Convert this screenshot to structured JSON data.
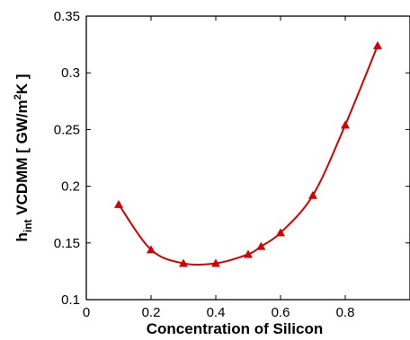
{
  "chart_data": {
    "type": "line",
    "xlabel": "Concentration of Silicon",
    "ylabel": {
      "h": "h",
      "sub": "int",
      "main": " VCDMM [ GW/m",
      "sup": "2",
      "tail": "K ]"
    },
    "xlim": [
      0,
      1
    ],
    "ylim": [
      0.1,
      0.35
    ],
    "x_ticks": [
      0,
      0.2,
      0.4,
      0.6,
      0.8
    ],
    "x_tick_labels": [
      "0",
      "0.2",
      "0.4",
      "0.6",
      "0.8"
    ],
    "y_ticks": [
      0.1,
      0.15,
      0.2,
      0.25,
      0.3,
      0.35
    ],
    "y_tick_labels": [
      "0.1",
      "0.15",
      "0.2",
      "0.25",
      "0.3",
      "0.35"
    ],
    "grid": false,
    "series": [
      {
        "x": [
          0.1,
          0.2,
          0.3,
          0.4,
          0.5,
          0.54,
          0.6,
          0.7,
          0.8,
          0.9
        ],
        "y": [
          0.184,
          0.144,
          0.132,
          0.132,
          0.14,
          0.147,
          0.159,
          0.192,
          0.254,
          0.324
        ],
        "color": "#d40000",
        "marker": "triangle"
      }
    ]
  }
}
